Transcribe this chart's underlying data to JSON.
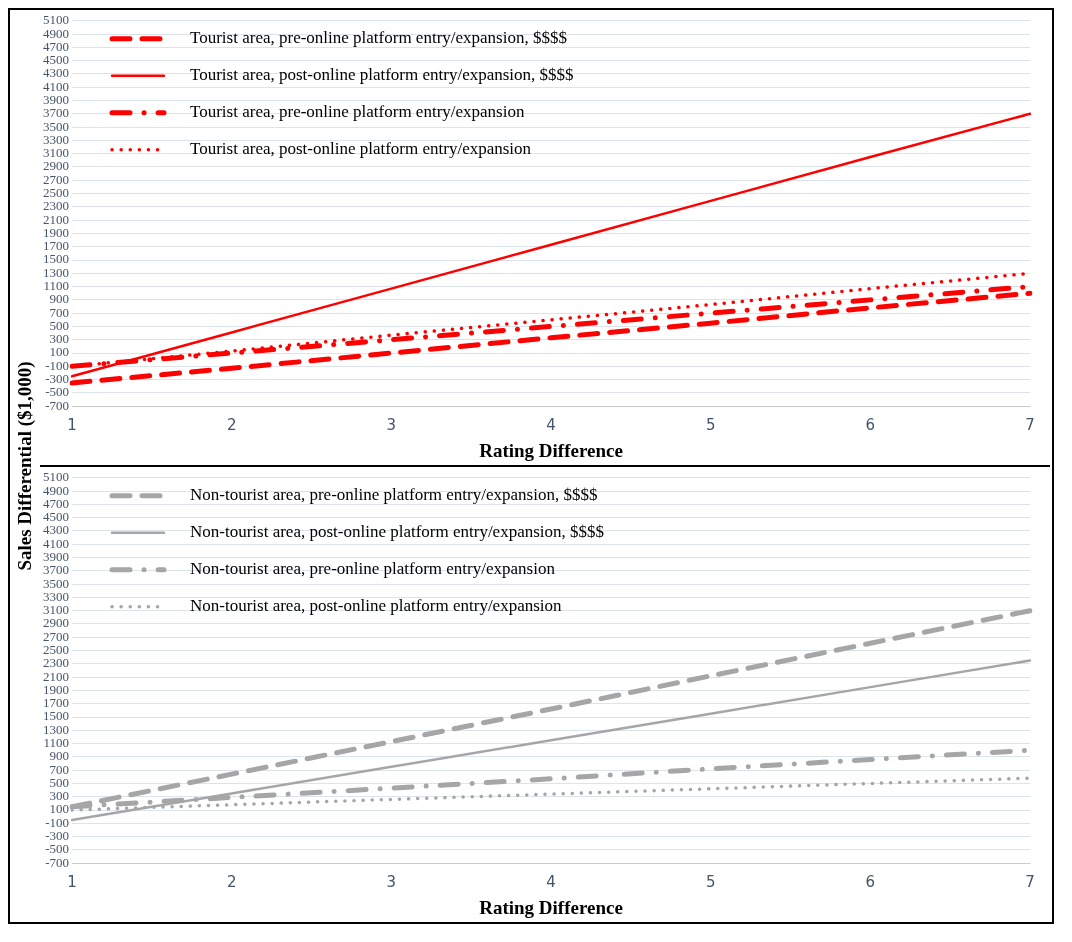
{
  "chart_data": [
    {
      "type": "line",
      "xlabel": "Rating Difference",
      "ylabel": "Sales Differential ($1,000)",
      "categories": [
        "1",
        "2",
        "3",
        "4",
        "5",
        "6",
        "7"
      ],
      "ylim": [
        -700,
        5100
      ],
      "yticks": [
        -700,
        -500,
        -300,
        -100,
        100,
        300,
        500,
        700,
        900,
        1100,
        1300,
        1500,
        1700,
        1900,
        2100,
        2300,
        2500,
        2700,
        2900,
        3100,
        3300,
        3500,
        3700,
        3900,
        4100,
        4300,
        4500,
        4700,
        4900,
        5100
      ],
      "grid": "y",
      "legend": "top left",
      "series": [
        {
          "name": "Tourist area, pre-online platform entry/expansion, $$$$",
          "color": "#ff0000",
          "line_style": "dashed",
          "values": [
            -350,
            -130,
            100,
            330,
            550,
            780,
            1000
          ]
        },
        {
          "name": "Tourist area, post-online platform entry/expansion, $$$$",
          "color": "#ff0000",
          "line_style": "solid",
          "values": [
            -250,
            410,
            1070,
            1730,
            2390,
            3050,
            3700
          ]
        },
        {
          "name": "Tourist area, pre-online platform entry/expansion",
          "color": "#ff0000",
          "line_style": "dashdot",
          "values": [
            -100,
            100,
            300,
            500,
            700,
            900,
            1100
          ]
        },
        {
          "name": "Tourist area, post-online platform entry/expansion",
          "color": "#ff0000",
          "line_style": "dotted",
          "values": [
            -100,
            130,
            370,
            600,
            830,
            1070,
            1300
          ]
        }
      ]
    },
    {
      "type": "line",
      "xlabel": "Rating Difference",
      "categories": [
        "1",
        "2",
        "3",
        "4",
        "5",
        "6",
        "7"
      ],
      "ylim": [
        -700,
        5100
      ],
      "yticks": [
        -700,
        -500,
        -300,
        -100,
        100,
        300,
        500,
        700,
        900,
        1100,
        1300,
        1500,
        1700,
        1900,
        2100,
        2300,
        2500,
        2700,
        2900,
        3100,
        3300,
        3500,
        3700,
        3900,
        4100,
        4300,
        4500,
        4700,
        4900,
        5100
      ],
      "grid": "y",
      "legend": "top left",
      "series": [
        {
          "name": "Non-tourist area, pre-online platform entry/expansion, $$$$",
          "color": "#a6a6a6",
          "line_style": "dashed",
          "values": [
            150,
            640,
            1130,
            1620,
            2120,
            2610,
            3100
          ]
        },
        {
          "name": "Non-tourist area, post-online platform entry/expansion, $$$$",
          "color": "#a6a6a6",
          "line_style": "solid",
          "values": [
            -50,
            350,
            750,
            1150,
            1550,
            1950,
            2350
          ]
        },
        {
          "name": "Non-tourist area, pre-online platform entry/expansion",
          "color": "#a6a6a6",
          "line_style": "dashdot",
          "values": [
            150,
            290,
            430,
            570,
            720,
            860,
            1000
          ]
        },
        {
          "name": "Non-tourist area, post-online platform entry/expansion",
          "color": "#a6a6a6",
          "line_style": "dotted",
          "values": [
            100,
            180,
            260,
            340,
            420,
            500,
            580
          ]
        }
      ]
    }
  ]
}
